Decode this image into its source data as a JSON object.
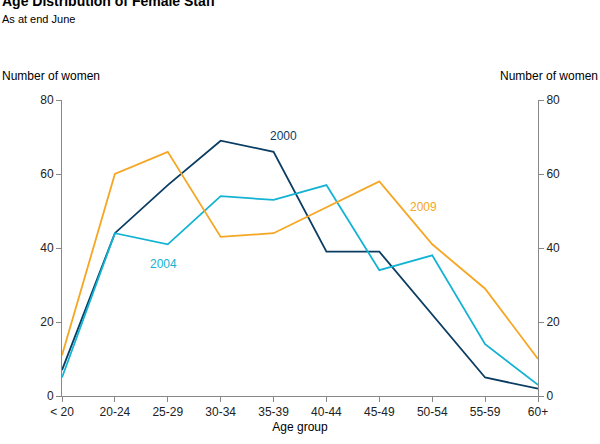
{
  "chart_data": {
    "type": "line",
    "title": "Age Distribution of Female Staff",
    "subtitle": "As at end June",
    "y_label": "Number of women",
    "y2_label": "Number of women",
    "x_label": "Age group",
    "categories": [
      "< 20",
      "20-24",
      "25-29",
      "30-34",
      "35-39",
      "40-44",
      "45-49",
      "50-54",
      "55-59",
      "60+"
    ],
    "series": [
      {
        "name": "2000",
        "color": "#0b3d62",
        "values": [
          7,
          44,
          57,
          69,
          66,
          39,
          39,
          22,
          5,
          2
        ]
      },
      {
        "name": "2004",
        "color": "#12b3d3",
        "values": [
          5,
          44,
          41,
          54,
          53,
          57,
          34,
          38,
          14,
          3
        ]
      },
      {
        "name": "2009",
        "color": "#f5a623",
        "values": [
          11,
          60,
          66,
          43,
          44,
          51,
          58,
          41,
          29,
          10
        ]
      }
    ],
    "ylim": [
      0,
      80
    ],
    "yticks": [
      0,
      20,
      40,
      60,
      80
    ],
    "y2lim": [
      0,
      80
    ],
    "y2ticks": [
      0,
      20,
      40,
      60,
      80
    ],
    "grid": false
  }
}
